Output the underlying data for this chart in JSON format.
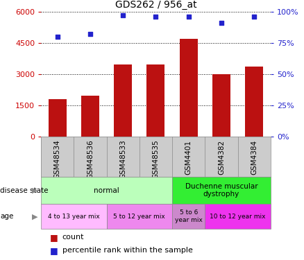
{
  "title": "GDS262 / 956_at",
  "categories": [
    "GSM48534",
    "GSM48536",
    "GSM48533",
    "GSM48535",
    "GSM4401",
    "GSM4382",
    "GSM4384"
  ],
  "counts": [
    1800,
    1950,
    3450,
    3450,
    4700,
    3000,
    3350
  ],
  "percentiles": [
    80,
    82,
    97,
    96,
    96,
    91,
    96
  ],
  "bar_color": "#bb1111",
  "dot_color": "#2222cc",
  "ylim_left": [
    0,
    6000
  ],
  "yticks_left": [
    0,
    1500,
    3000,
    4500,
    6000
  ],
  "ylim_right": [
    0,
    100
  ],
  "yticks_right": [
    0,
    25,
    50,
    75,
    100
  ],
  "disease_state_row": [
    {
      "label": "normal",
      "start": 0,
      "end": 4,
      "color": "#bbffbb"
    },
    {
      "label": "Duchenne muscular\ndystrophy",
      "start": 4,
      "end": 7,
      "color": "#33ee33"
    }
  ],
  "age_row": [
    {
      "label": "4 to 13 year mix",
      "start": 0,
      "end": 2,
      "color": "#ffbbff"
    },
    {
      "label": "5 to 12 year mix",
      "start": 2,
      "end": 4,
      "color": "#ee88ee"
    },
    {
      "label": "5 to 6\nyear mix",
      "start": 4,
      "end": 5,
      "color": "#cc88cc"
    },
    {
      "label": "10 to 12 year mix",
      "start": 5,
      "end": 7,
      "color": "#ee33ee"
    }
  ],
  "left_axis_color": "#cc0000",
  "right_axis_color": "#2222cc",
  "background_color": "#ffffff",
  "grid_color": "#000000",
  "xtick_bg_color": "#cccccc"
}
